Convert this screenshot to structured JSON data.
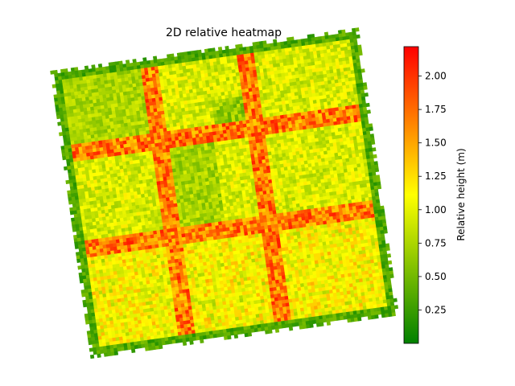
{
  "chart_data": {
    "type": "heatmap",
    "title": "2D relative heatmap",
    "axes_visible": false,
    "grid": false,
    "colorbar": {
      "label": "Relative height (m)",
      "range": [
        0.0,
        2.22
      ],
      "ticks": [
        0.25,
        0.5,
        0.75,
        1.0,
        1.25,
        1.5,
        1.75,
        2.0
      ],
      "tick_labels": [
        "0.25",
        "0.50",
        "0.75",
        "1.00",
        "1.25",
        "1.50",
        "1.75",
        "2.00"
      ],
      "placement": "right",
      "colormap": [
        "#008000",
        "#ffff00",
        "#ff0000"
      ]
    },
    "grid_shape": {
      "rows": 84,
      "cols": 90
    },
    "rotation_deg": -8,
    "value_range": [
      0.0,
      2.2
    ],
    "description_of_values": "heights sampled over a rotated square field with field boundary low (green) and block edges high (red)"
  }
}
